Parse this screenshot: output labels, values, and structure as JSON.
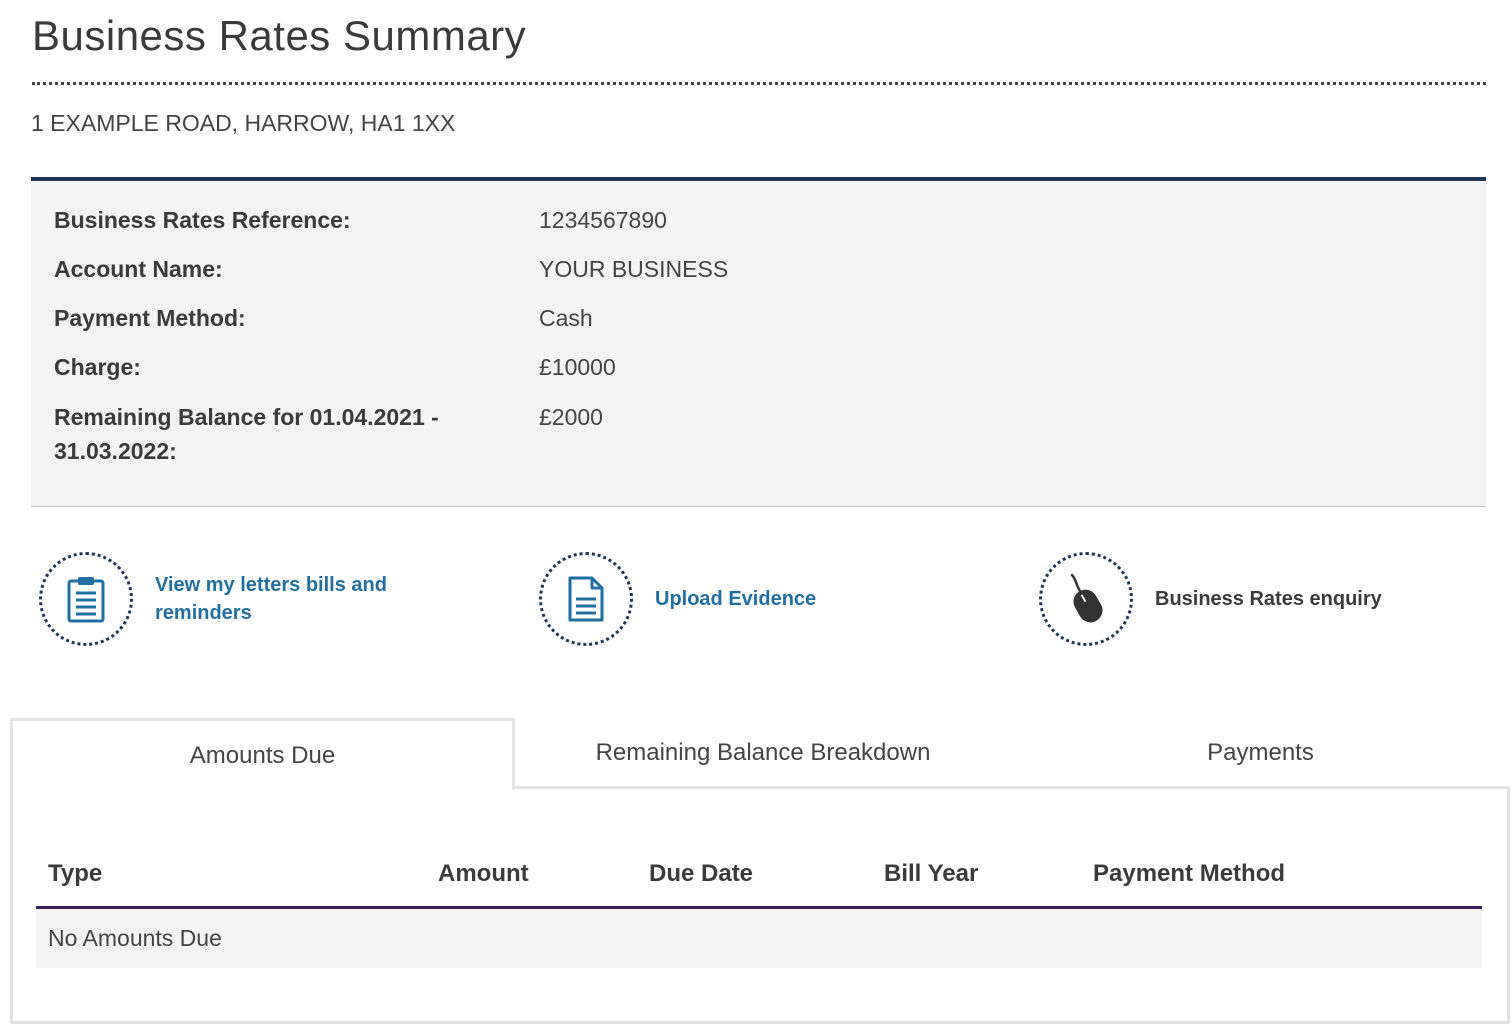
{
  "page": {
    "title": "Business Rates Summary",
    "address": "1 EXAMPLE ROAD, HARROW, HA1 1XX"
  },
  "summary": {
    "reference_label": "Business Rates Reference:",
    "reference_value": "1234567890",
    "account_label": "Account Name:",
    "account_value": "YOUR BUSINESS",
    "payment_label": "Payment Method:",
    "payment_value": "Cash",
    "charge_label": "Charge:",
    "charge_value": "£10000",
    "balance_label": "Remaining Balance for 01.04.2021 - 31.03.2022:",
    "balance_value": "£2000"
  },
  "actions": [
    {
      "label": "View my letters bills and reminders",
      "icon": "clipboard-icon"
    },
    {
      "label": "Upload Evidence",
      "icon": "document-icon"
    },
    {
      "label": "Business Rates enquiry",
      "icon": "mouse-icon"
    }
  ],
  "tabs": [
    {
      "label": "Amounts Due",
      "active": true
    },
    {
      "label": "Remaining Balance Breakdown",
      "active": false
    },
    {
      "label": "Payments",
      "active": false
    }
  ],
  "table": {
    "columns": [
      "Type",
      "Amount",
      "Due Date",
      "Bill Year",
      "Payment Method"
    ],
    "empty_message": "No Amounts Due"
  },
  "colors": {
    "accent_navy": "#1d3557",
    "link_blue": "#1f6fa3",
    "table_rule_purple": "#3b1f5a",
    "panel_grey": "#f2f3f2"
  }
}
